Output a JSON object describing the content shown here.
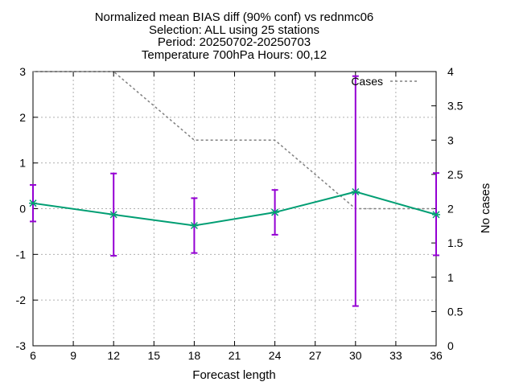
{
  "title_lines": [
    "Normalized mean BIAS diff (90% conf) vs rednmc06",
    "Selection: ALL using    25 stations",
    "Period: 20250702-20250703",
    "Temperature 700hPa   Hours: 00,12"
  ],
  "chart_data": {
    "type": "line",
    "xlabel": "Forecast length",
    "ylabel": "",
    "y2label": "No cases",
    "xlim": [
      6,
      36
    ],
    "ylim": [
      -3,
      3
    ],
    "y2lim": [
      0,
      4
    ],
    "xticks": [
      6,
      9,
      12,
      15,
      18,
      21,
      24,
      27,
      30,
      33,
      36
    ],
    "yticks": [
      -3,
      -2,
      -1,
      0,
      1,
      2,
      3
    ],
    "y2ticks": [
      "0",
      "0.5",
      "1",
      "1.5",
      "2",
      "2.5",
      "3",
      "3.5",
      "4"
    ],
    "grid": true,
    "legend_position": "top-right",
    "series": [
      {
        "name": "",
        "axis": "y",
        "color": "#009e73",
        "x": [
          6,
          12,
          18,
          24,
          30,
          36
        ],
        "values": [
          0.12,
          -0.13,
          -0.37,
          -0.08,
          0.37,
          -0.13
        ],
        "error_low": [
          -0.28,
          -1.03,
          -0.97,
          -0.57,
          -2.13,
          -1.02
        ],
        "error_high": [
          0.52,
          0.77,
          0.23,
          0.41,
          2.9,
          0.78
        ],
        "error_color": "#9400d3"
      },
      {
        "name": "Cases",
        "axis": "y2",
        "color": "#808080",
        "x": [
          6,
          12,
          18,
          24,
          30,
          36
        ],
        "values": [
          4,
          4,
          3,
          3,
          2,
          2
        ]
      }
    ]
  }
}
